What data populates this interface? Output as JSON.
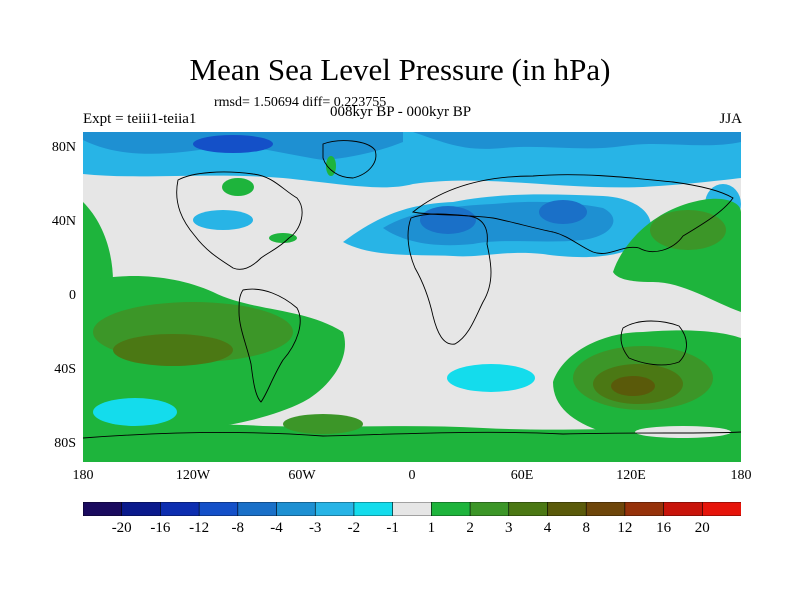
{
  "title": "Mean Sea Level Pressure (in hPa)",
  "stats": "rmsd= 1.50694 diff= 0.223755",
  "experiment": "Expt = teiii1-teiia1",
  "period": "008kyr BP - 000kyr BP",
  "season": "JJA",
  "lat_labels": [
    "80N",
    "40N",
    "0",
    "40S",
    "80S"
  ],
  "lon_labels": [
    "180",
    "120W",
    "60W",
    "0",
    "60E",
    "120E",
    "180"
  ],
  "colorbar": {
    "colors": [
      "#1a0a5e",
      "#0a1a8c",
      "#0d2eb0",
      "#1450c8",
      "#1a70c8",
      "#1e90d2",
      "#28b4e6",
      "#14dcec",
      "#e6e6e6",
      "#1eb43c",
      "#3c9628",
      "#4b7814",
      "#5a5a0a",
      "#6e460a",
      "#96320a",
      "#c8140a",
      "#e6140a"
    ],
    "labels": [
      "-20",
      "-16",
      "-12",
      "-8",
      "-4",
      "-3",
      "-2",
      "-1",
      "1",
      "2",
      "3",
      "4",
      "8",
      "12",
      "16",
      "20"
    ]
  }
}
